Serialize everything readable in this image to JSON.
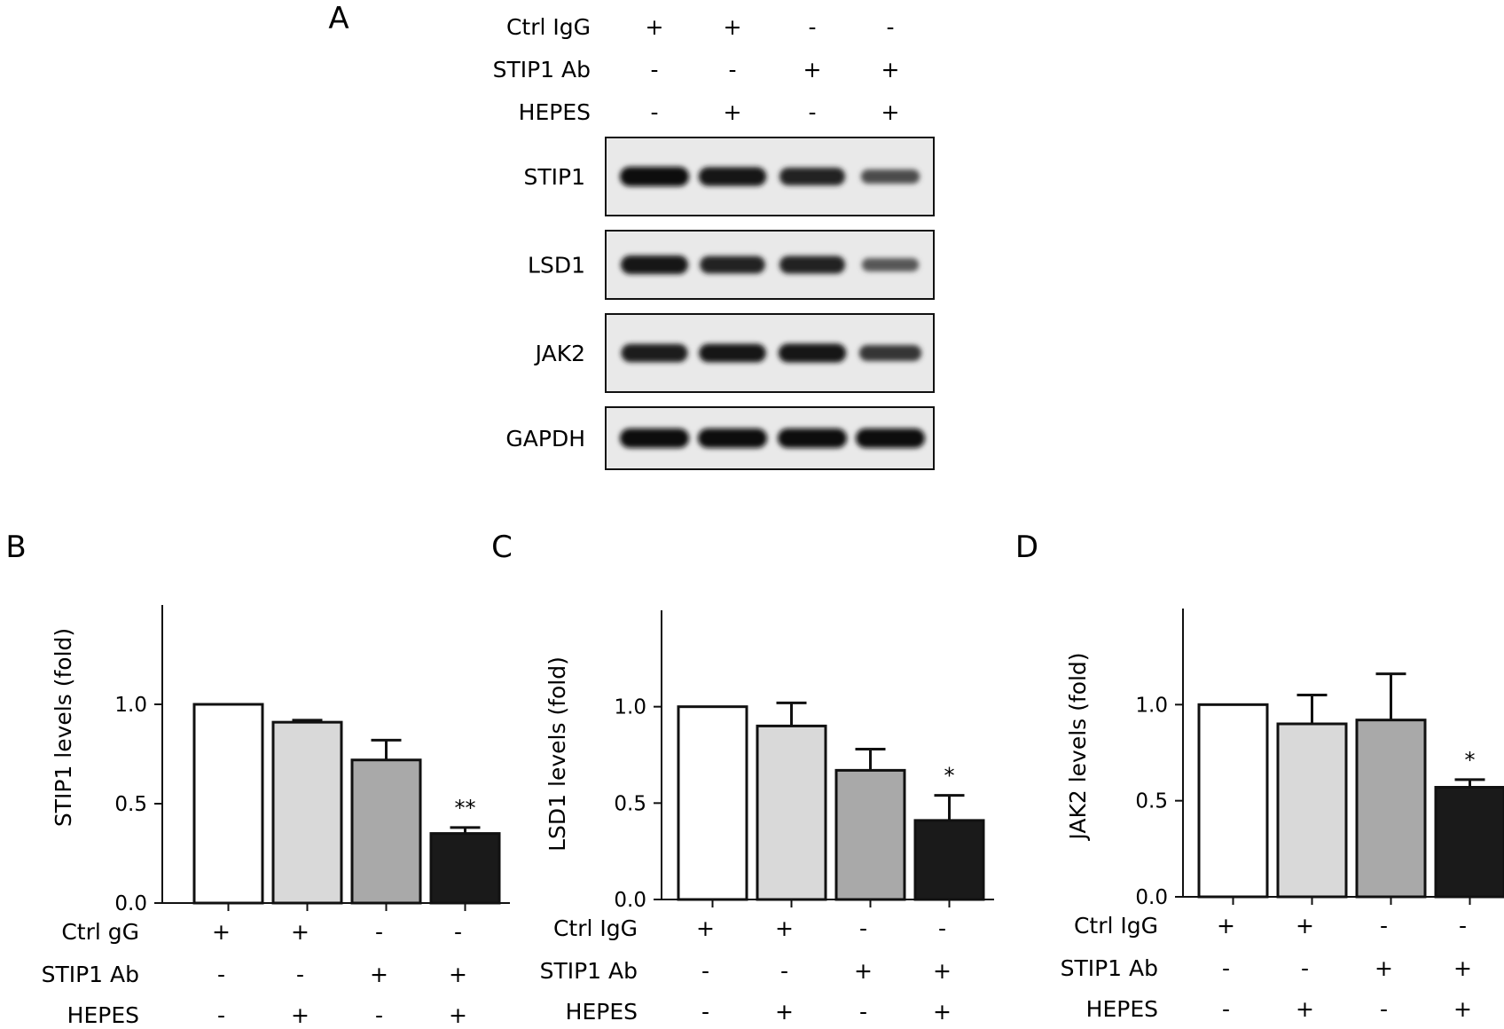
{
  "panel_a": {
    "letter": "A",
    "conditions": [
      {
        "label": "Ctrl IgG",
        "signs": [
          "+",
          "+",
          "-",
          "-"
        ]
      },
      {
        "label": "STIP1 Ab",
        "signs": [
          "-",
          "-",
          "+",
          "+"
        ]
      },
      {
        "label": "HEPES",
        "signs": [
          "-",
          "+",
          "-",
          "+"
        ]
      }
    ],
    "blots": [
      {
        "label": "STIP1",
        "band_intensity": [
          1.0,
          0.92,
          0.8,
          0.4
        ]
      },
      {
        "label": "LSD1",
        "band_intensity": [
          0.9,
          0.78,
          0.8,
          0.3
        ]
      },
      {
        "label": "JAK2",
        "band_intensity": [
          0.85,
          0.88,
          0.92,
          0.6
        ]
      },
      {
        "label": "GAPDH",
        "band_intensity": [
          1.0,
          1.0,
          1.0,
          1.0
        ]
      }
    ]
  },
  "chart_data": [
    {
      "type": "bar",
      "letter": "B",
      "ylabel": "STIP1 levels (fold)",
      "ylim": [
        0,
        1.5
      ],
      "yticks": [
        "0.0",
        "0.5",
        "1.0"
      ],
      "values": [
        1.0,
        0.91,
        0.72,
        0.35
      ],
      "errors": [
        0.0,
        0.01,
        0.1,
        0.03
      ],
      "annotations": [
        "",
        "",
        "",
        "**"
      ],
      "bar_colors": [
        "#ffffff",
        "#d9d9d9",
        "#a9a9a9",
        "#1a1a1a"
      ],
      "conditions": [
        {
          "label": "Ctrl gG",
          "signs": [
            "+",
            "+",
            "-",
            "-"
          ]
        },
        {
          "label": "STIP1 Ab",
          "signs": [
            "-",
            "-",
            "+",
            "+"
          ]
        },
        {
          "label": "HEPES",
          "signs": [
            "-",
            "+",
            "-",
            "+"
          ]
        }
      ]
    },
    {
      "type": "bar",
      "letter": "C",
      "ylabel": "LSD1 levels (fold)",
      "ylim": [
        0,
        1.5
      ],
      "yticks": [
        "0.0",
        "0.5",
        "1.0"
      ],
      "values": [
        1.0,
        0.9,
        0.67,
        0.41
      ],
      "errors": [
        0.0,
        0.12,
        0.11,
        0.13
      ],
      "annotations": [
        "",
        "",
        "",
        "*"
      ],
      "bar_colors": [
        "#ffffff",
        "#d9d9d9",
        "#a9a9a9",
        "#1a1a1a"
      ],
      "conditions": [
        {
          "label": "Ctrl IgG",
          "signs": [
            "+",
            "+",
            "-",
            "-"
          ]
        },
        {
          "label": "STIP1 Ab",
          "signs": [
            "-",
            "-",
            "+",
            "+"
          ]
        },
        {
          "label": "HEPES",
          "signs": [
            "-",
            "+",
            "-",
            "+"
          ]
        }
      ]
    },
    {
      "type": "bar",
      "letter": "D",
      "ylabel": "JAK2 levels (fold)",
      "ylim": [
        0,
        1.5
      ],
      "yticks": [
        "0.0",
        "0.5",
        "1.0"
      ],
      "values": [
        1.0,
        0.9,
        0.92,
        0.57
      ],
      "errors": [
        0.0,
        0.15,
        0.24,
        0.04
      ],
      "annotations": [
        "",
        "",
        "",
        "*"
      ],
      "bar_colors": [
        "#ffffff",
        "#d9d9d9",
        "#a9a9a9",
        "#1a1a1a"
      ],
      "conditions": [
        {
          "label": "Ctrl IgG",
          "signs": [
            "+",
            "+",
            "-",
            "-"
          ]
        },
        {
          "label": "STIP1 Ab",
          "signs": [
            "-",
            "-",
            "+",
            "+"
          ]
        },
        {
          "label": "HEPES",
          "signs": [
            "-",
            "+",
            "-",
            "+"
          ]
        }
      ]
    }
  ]
}
